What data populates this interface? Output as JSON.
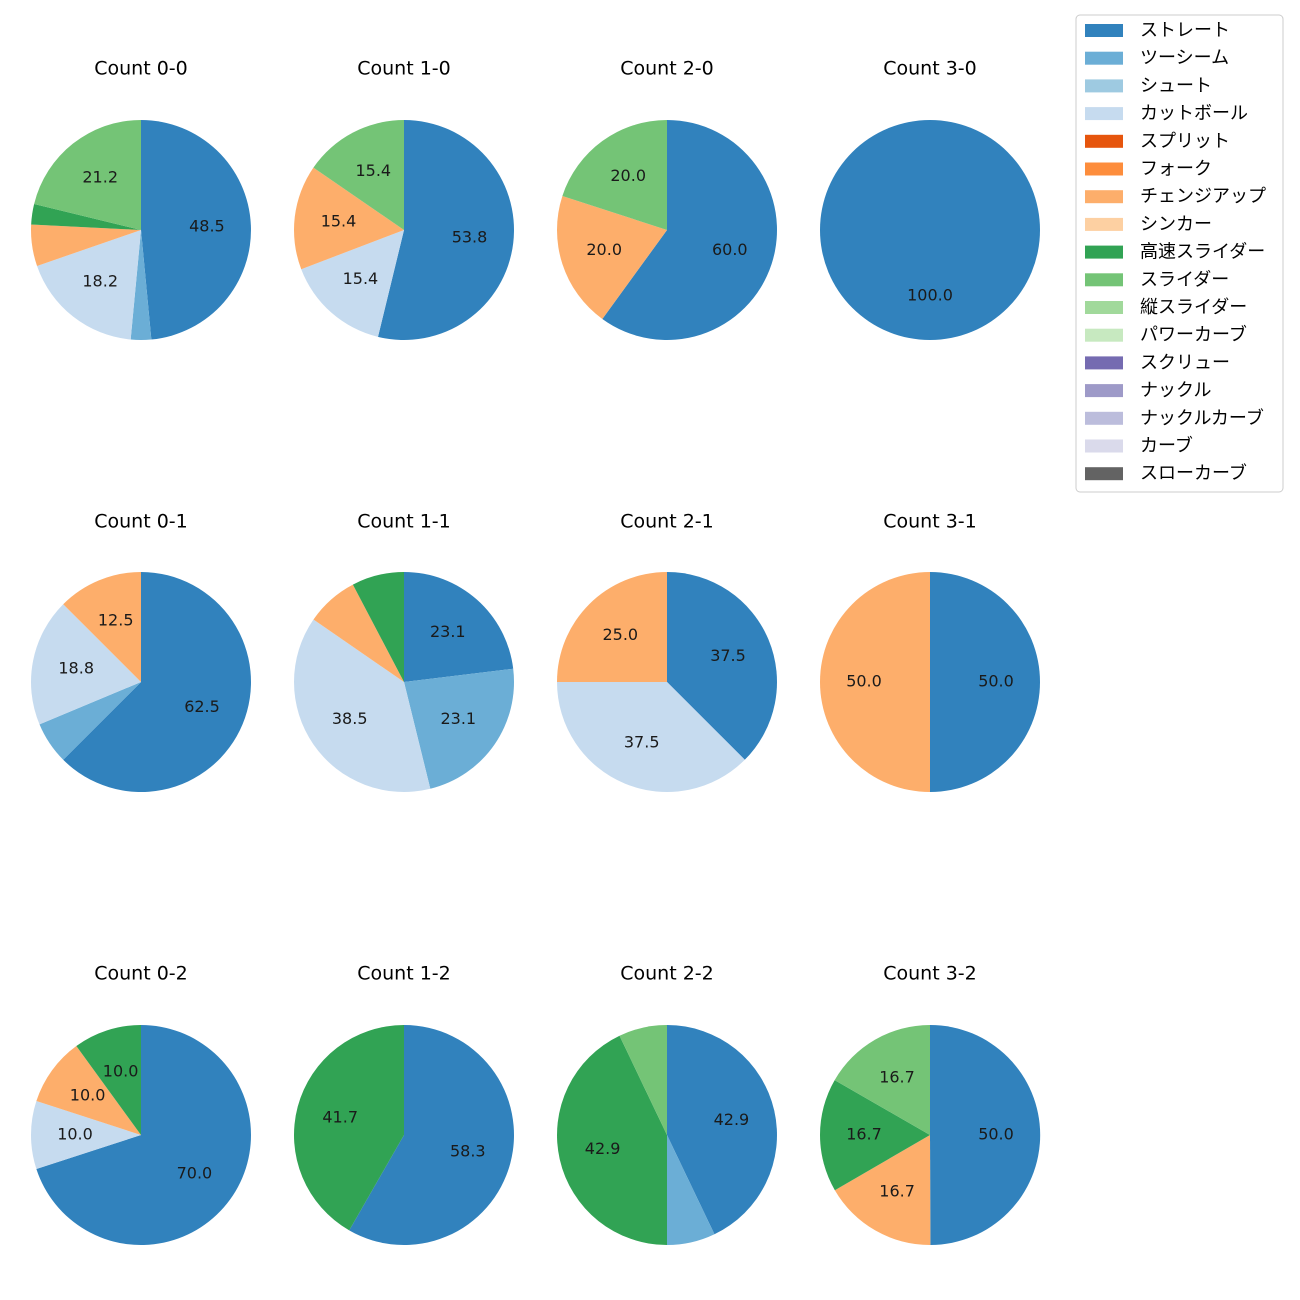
{
  "legend": {
    "entries": [
      {
        "name": "ストレート",
        "color": "#3182bd"
      },
      {
        "name": "ツーシーム",
        "color": "#6baed6"
      },
      {
        "name": "シュート",
        "color": "#9ecae1"
      },
      {
        "name": "カットボール",
        "color": "#c6dbef"
      },
      {
        "name": "スプリット",
        "color": "#e6550d"
      },
      {
        "name": "フォーク",
        "color": "#fd8d3c"
      },
      {
        "name": "チェンジアップ",
        "color": "#fdae6b"
      },
      {
        "name": "シンカー",
        "color": "#fdd0a2"
      },
      {
        "name": "高速スライダー",
        "color": "#31a354"
      },
      {
        "name": "スライダー",
        "color": "#74c476"
      },
      {
        "name": "縦スライダー",
        "color": "#a1d99b"
      },
      {
        "name": "パワーカーブ",
        "color": "#c7e9c0"
      },
      {
        "name": "スクリュー",
        "color": "#756bb1"
      },
      {
        "name": "ナックル",
        "color": "#9e9ac8"
      },
      {
        "name": "ナックルカーブ",
        "color": "#bcbddc"
      },
      {
        "name": "カーブ",
        "color": "#dadaeb"
      },
      {
        "name": "スローカーブ",
        "color": "#636363"
      }
    ]
  },
  "chart_data": [
    {
      "type": "pie",
      "title": "Count 0-0",
      "slices": [
        {
          "label": "ストレート",
          "value": 48.5,
          "text": "48.5"
        },
        {
          "label": "ツーシーム",
          "value": 3.0,
          "text": ""
        },
        {
          "label": "カットボール",
          "value": 18.2,
          "text": "18.2"
        },
        {
          "label": "チェンジアップ",
          "value": 6.1,
          "text": ""
        },
        {
          "label": "高速スライダー",
          "value": 3.0,
          "text": ""
        },
        {
          "label": "スライダー",
          "value": 21.2,
          "text": "21.2"
        }
      ]
    },
    {
      "type": "pie",
      "title": "Count 1-0",
      "slices": [
        {
          "label": "ストレート",
          "value": 53.8,
          "text": "53.8"
        },
        {
          "label": "カットボール",
          "value": 15.4,
          "text": "15.4"
        },
        {
          "label": "チェンジアップ",
          "value": 15.4,
          "text": "15.4"
        },
        {
          "label": "スライダー",
          "value": 15.4,
          "text": "15.4"
        }
      ]
    },
    {
      "type": "pie",
      "title": "Count 2-0",
      "slices": [
        {
          "label": "ストレート",
          "value": 60.0,
          "text": "60.0"
        },
        {
          "label": "チェンジアップ",
          "value": 20.0,
          "text": "20.0"
        },
        {
          "label": "スライダー",
          "value": 20.0,
          "text": "20.0"
        }
      ]
    },
    {
      "type": "pie",
      "title": "Count 3-0",
      "slices": [
        {
          "label": "ストレート",
          "value": 100.0,
          "text": "100.0"
        }
      ]
    },
    {
      "type": "pie",
      "title": "Count 0-1",
      "slices": [
        {
          "label": "ストレート",
          "value": 62.5,
          "text": "62.5"
        },
        {
          "label": "ツーシーム",
          "value": 6.2,
          "text": ""
        },
        {
          "label": "カットボール",
          "value": 18.8,
          "text": "18.8"
        },
        {
          "label": "チェンジアップ",
          "value": 12.5,
          "text": "12.5"
        }
      ]
    },
    {
      "type": "pie",
      "title": "Count 1-1",
      "slices": [
        {
          "label": "ストレート",
          "value": 23.1,
          "text": "23.1"
        },
        {
          "label": "ツーシーム",
          "value": 23.1,
          "text": "23.1"
        },
        {
          "label": "カットボール",
          "value": 38.5,
          "text": "38.5"
        },
        {
          "label": "チェンジアップ",
          "value": 7.7,
          "text": ""
        },
        {
          "label": "高速スライダー",
          "value": 7.7,
          "text": ""
        }
      ]
    },
    {
      "type": "pie",
      "title": "Count 2-1",
      "slices": [
        {
          "label": "ストレート",
          "value": 37.5,
          "text": "37.5"
        },
        {
          "label": "カットボール",
          "value": 37.5,
          "text": "37.5"
        },
        {
          "label": "チェンジアップ",
          "value": 25.0,
          "text": "25.0"
        }
      ]
    },
    {
      "type": "pie",
      "title": "Count 3-1",
      "slices": [
        {
          "label": "ストレート",
          "value": 50.0,
          "text": "50.0"
        },
        {
          "label": "チェンジアップ",
          "value": 50.0,
          "text": "50.0"
        }
      ]
    },
    {
      "type": "pie",
      "title": "Count 0-2",
      "slices": [
        {
          "label": "ストレート",
          "value": 70.0,
          "text": "70.0"
        },
        {
          "label": "カットボール",
          "value": 10.0,
          "text": "10.0"
        },
        {
          "label": "チェンジアップ",
          "value": 10.0,
          "text": "10.0"
        },
        {
          "label": "高速スライダー",
          "value": 10.0,
          "text": "10.0"
        }
      ]
    },
    {
      "type": "pie",
      "title": "Count 1-2",
      "slices": [
        {
          "label": "ストレート",
          "value": 58.3,
          "text": "58.3"
        },
        {
          "label": "高速スライダー",
          "value": 41.7,
          "text": "41.7"
        }
      ]
    },
    {
      "type": "pie",
      "title": "Count 2-2",
      "slices": [
        {
          "label": "ストレート",
          "value": 42.9,
          "text": "42.9"
        },
        {
          "label": "ツーシーム",
          "value": 7.1,
          "text": ""
        },
        {
          "label": "高速スライダー",
          "value": 42.9,
          "text": "42.9"
        },
        {
          "label": "スライダー",
          "value": 7.1,
          "text": ""
        }
      ]
    },
    {
      "type": "pie",
      "title": "Count 3-2",
      "slices": [
        {
          "label": "ストレート",
          "value": 50.0,
          "text": "50.0"
        },
        {
          "label": "チェンジアップ",
          "value": 16.7,
          "text": "16.7"
        },
        {
          "label": "高速スライダー",
          "value": 16.7,
          "text": "16.7"
        },
        {
          "label": "スライダー",
          "value": 16.7,
          "text": "16.7"
        }
      ]
    }
  ]
}
